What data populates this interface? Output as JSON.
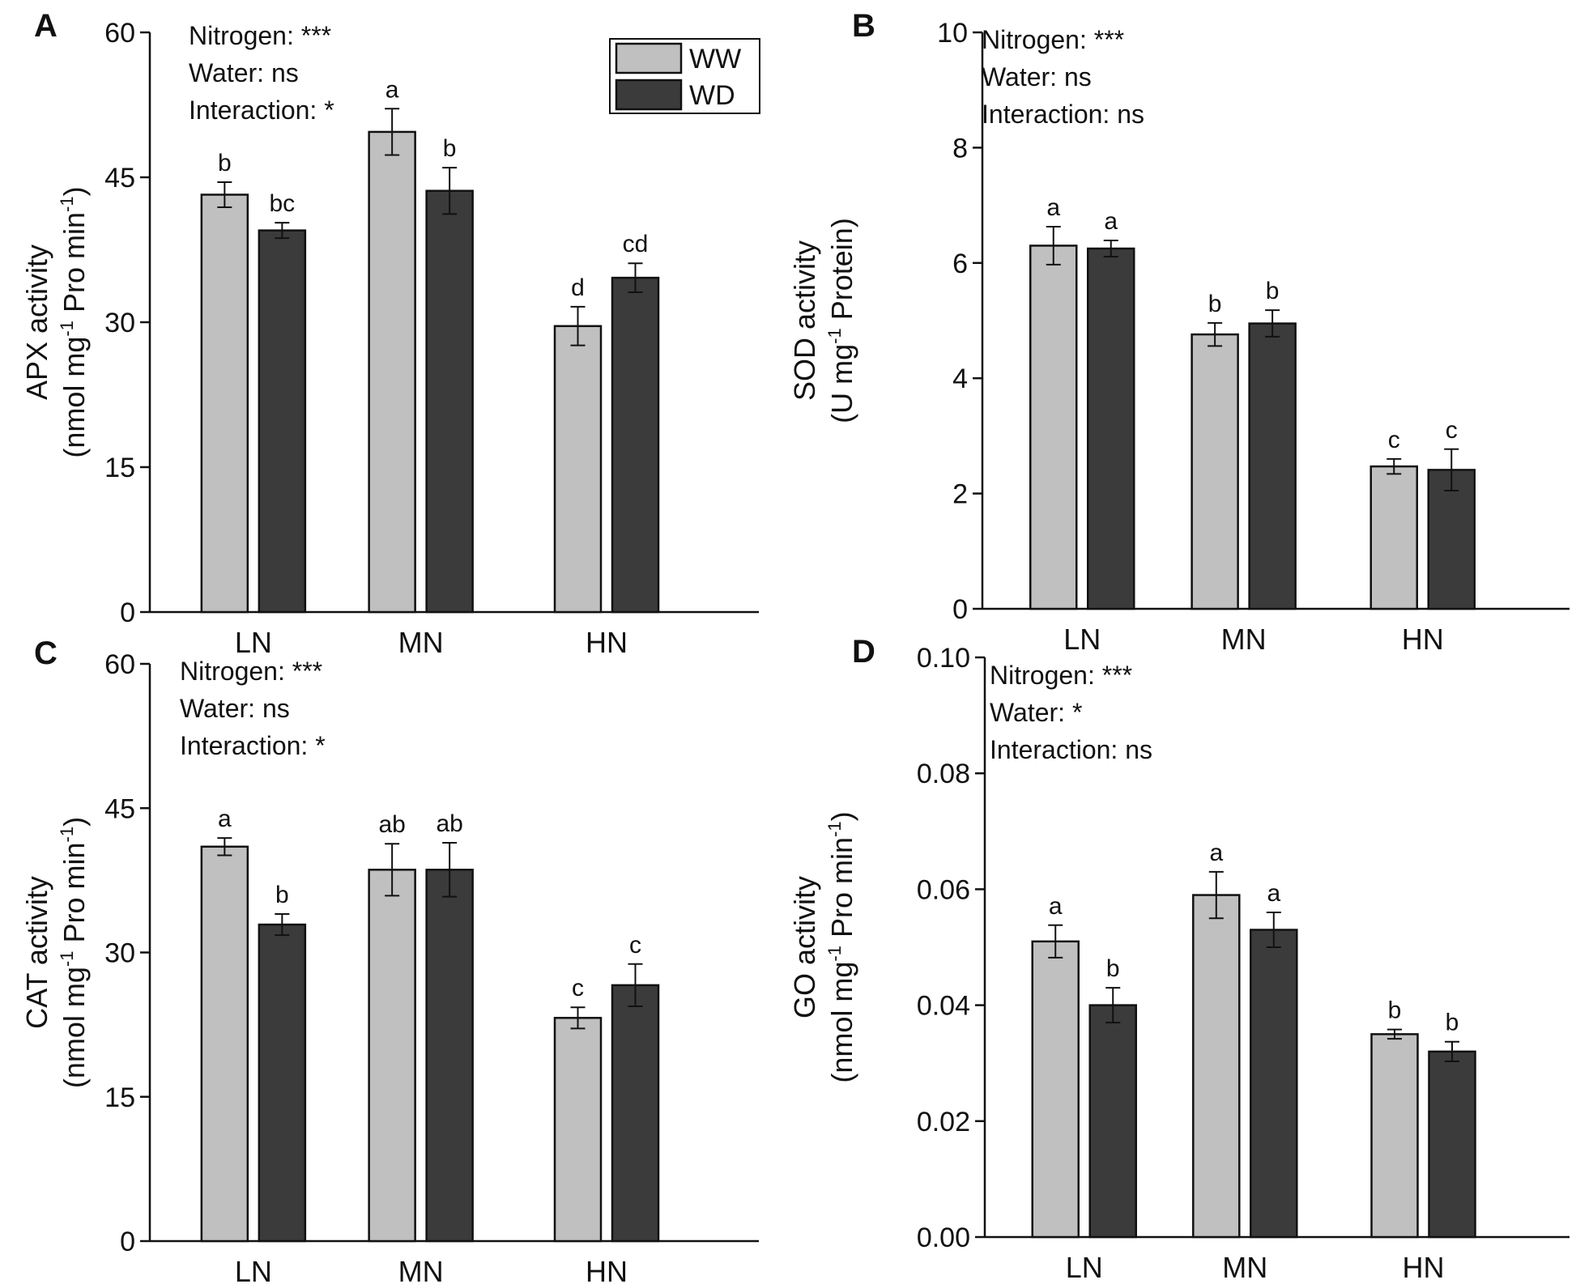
{
  "colors": {
    "ww": "#c0c0c0",
    "wd": "#3b3b3b"
  },
  "legend": {
    "ww_label": "WW",
    "wd_label": "WD"
  },
  "chart_data": [
    {
      "type": "bar",
      "panel": "A",
      "ylabel_main": "APX activity",
      "ylabel_unit": [
        "(nmol mg",
        "-1",
        " Pro min",
        "-1",
        ")"
      ],
      "ylim": [
        0,
        60
      ],
      "yticks": [
        0,
        15,
        30,
        45,
        60
      ],
      "ytick_labels": [
        "0",
        "15",
        "30",
        "45",
        "60"
      ],
      "categories": [
        "LN",
        "MN",
        "HN"
      ],
      "stats": [
        "Nitrogen: ***",
        "Water: ns",
        "Interaction: *"
      ],
      "series": [
        {
          "name": "WW",
          "values": [
            43.2,
            49.7,
            29.6
          ],
          "errors": [
            1.3,
            2.4,
            2.0
          ],
          "letters": [
            "b",
            "a",
            "d"
          ]
        },
        {
          "name": "WD",
          "values": [
            39.5,
            43.6,
            34.6
          ],
          "errors": [
            0.8,
            2.4,
            1.5
          ],
          "letters": [
            "bc",
            "b",
            "cd"
          ]
        }
      ]
    },
    {
      "type": "bar",
      "panel": "B",
      "ylabel_main": "SOD activity",
      "ylabel_unit": [
        "(U mg",
        "-1",
        " Protein)",
        "",
        ""
      ],
      "ylim": [
        0,
        10
      ],
      "yticks": [
        0,
        2,
        4,
        6,
        8,
        10
      ],
      "ytick_labels": [
        "0",
        "2",
        "4",
        "6",
        "8",
        "10"
      ],
      "categories": [
        "LN",
        "MN",
        "HN"
      ],
      "stats": [
        "Nitrogen: ***",
        "Water: ns",
        "Interaction: ns"
      ],
      "series": [
        {
          "name": "WW",
          "values": [
            6.3,
            4.76,
            2.47
          ],
          "errors": [
            0.33,
            0.2,
            0.13
          ],
          "letters": [
            "a",
            "b",
            "c"
          ]
        },
        {
          "name": "WD",
          "values": [
            6.25,
            4.95,
            2.41
          ],
          "errors": [
            0.14,
            0.23,
            0.36
          ],
          "letters": [
            "a",
            "b",
            "c"
          ]
        }
      ]
    },
    {
      "type": "bar",
      "panel": "C",
      "ylabel_main": "CAT activity",
      "ylabel_unit": [
        "(nmol mg",
        "-1",
        " Pro min",
        "-1",
        ")"
      ],
      "ylim": [
        0,
        60
      ],
      "yticks": [
        0,
        15,
        30,
        45,
        60
      ],
      "ytick_labels": [
        "0",
        "15",
        "30",
        "45",
        "60"
      ],
      "categories": [
        "LN",
        "MN",
        "HN"
      ],
      "stats": [
        "Nitrogen: ***",
        "Water: ns",
        "Interaction: *"
      ],
      "series": [
        {
          "name": "WW",
          "values": [
            41.0,
            38.6,
            23.2
          ],
          "errors": [
            0.9,
            2.7,
            1.1
          ],
          "letters": [
            "a",
            "ab",
            "c"
          ]
        },
        {
          "name": "WD",
          "values": [
            32.9,
            38.6,
            26.6
          ],
          "errors": [
            1.1,
            2.8,
            2.2
          ],
          "letters": [
            "b",
            "ab",
            "c"
          ]
        }
      ]
    },
    {
      "type": "bar",
      "panel": "D",
      "ylabel_main": "GO activity",
      "ylabel_unit": [
        "(nmol mg",
        "-1",
        " Pro min",
        "-1",
        ")"
      ],
      "ylim": [
        0,
        0.1
      ],
      "yticks": [
        0,
        0.02,
        0.04,
        0.06,
        0.08,
        0.1
      ],
      "ytick_labels": [
        "0.00",
        "0.02",
        "0.04",
        "0.06",
        "0.08",
        "0.10"
      ],
      "categories": [
        "LN",
        "MN",
        "HN"
      ],
      "stats": [
        "Nitrogen: ***",
        "Water: *",
        "Interaction: ns"
      ],
      "series": [
        {
          "name": "WW",
          "values": [
            0.051,
            0.059,
            0.035
          ],
          "errors": [
            0.0028,
            0.004,
            0.0008
          ],
          "letters": [
            "a",
            "a",
            "b"
          ]
        },
        {
          "name": "WD",
          "values": [
            0.04,
            0.053,
            0.032
          ],
          "errors": [
            0.003,
            0.003,
            0.0017
          ],
          "letters": [
            "b",
            "a",
            "b"
          ]
        }
      ]
    }
  ]
}
